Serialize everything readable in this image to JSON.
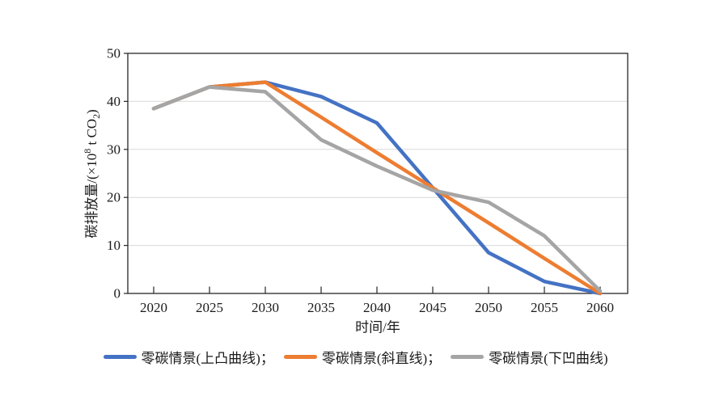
{
  "chart_data": {
    "type": "line",
    "title": "",
    "xlabel": "时间/年",
    "ylabel": "碳排放量/(×10⁸ t CO₂)",
    "ylabel_parts": {
      "pre": "碳排放量/(×10",
      "sup": "8",
      "mid": " t CO",
      "sub": "2",
      "post": ")"
    },
    "categories": [
      "2020",
      "2025",
      "2030",
      "2035",
      "2040",
      "2045",
      "2050",
      "2055",
      "2060"
    ],
    "series": [
      {
        "name": "零碳情景(上凸曲线)",
        "color": "#4472C4",
        "values": [
          38.5,
          43,
          44,
          41,
          35.5,
          22,
          8.5,
          2.5,
          0
        ]
      },
      {
        "name": "零碳情景(斜直线)",
        "color": "#ED7D31",
        "values": [
          38.5,
          43,
          44,
          36.7,
          29.3,
          22,
          14.7,
          7.3,
          0
        ]
      },
      {
        "name": "零碳情景(下凹曲线)",
        "color": "#A5A5A5",
        "values": [
          38.5,
          43,
          42,
          32,
          26.5,
          21.5,
          19,
          12,
          0.5
        ]
      }
    ],
    "legend": [
      {
        "label": "零碳情景(上凸曲线)；"
      },
      {
        "label": "零碳情景(斜直线)；"
      },
      {
        "label": "零碳情景(下凹曲线)"
      }
    ],
    "ylim": [
      0,
      50
    ],
    "yticks": [
      0,
      10,
      20,
      30,
      40,
      50
    ],
    "grid": true,
    "legend_position": "bottom",
    "axis_color": "#262626",
    "grid_color": "#d9d9d9"
  }
}
